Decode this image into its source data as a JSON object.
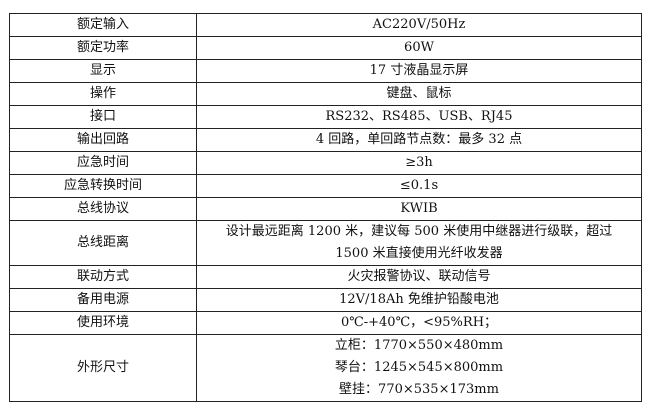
{
  "rows": [
    {
      "label": "额定输入",
      "lines": [
        "AC220V/50Hz"
      ]
    },
    {
      "label": "额定功率",
      "lines": [
        "60W"
      ]
    },
    {
      "label": "显示",
      "lines": [
        "17 寸液晶显示屏"
      ]
    },
    {
      "label": "操作",
      "lines": [
        "键盘、鼠标"
      ]
    },
    {
      "label": "接口",
      "lines": [
        "RS232、RS485、USB、RJ45"
      ]
    },
    {
      "label": "输出回路",
      "lines": [
        "4 回路，单回路节点数：最多 32 点"
      ]
    },
    {
      "label": "应急时间",
      "lines": [
        "≥3h"
      ]
    },
    {
      "label": "应急转换时间",
      "lines": [
        "≤0.1s"
      ]
    },
    {
      "label": "总线协议",
      "lines": [
        "KWIB"
      ]
    },
    {
      "label": "总线距离",
      "lines": [
        "设计最远距离 1200 米，建议每 500 米使用中继器进行级联，超过",
        "1500 米直接使用光纤收发器"
      ]
    },
    {
      "label": "联动方式",
      "lines": [
        "火灾报警协议、联动信号"
      ]
    },
    {
      "label": "备用电源",
      "lines": [
        "12V/18Ah 免维护铅酸电池"
      ]
    },
    {
      "label": "使用环境",
      "lines": [
        "0℃-+40℃，<95%RH；"
      ]
    },
    {
      "label": "外形尺寸",
      "lines": [
        "立柜：1770×550×480mm",
        "琴台：1245×545×800mm",
        "壁挂：770×535×173mm"
      ]
    }
  ]
}
